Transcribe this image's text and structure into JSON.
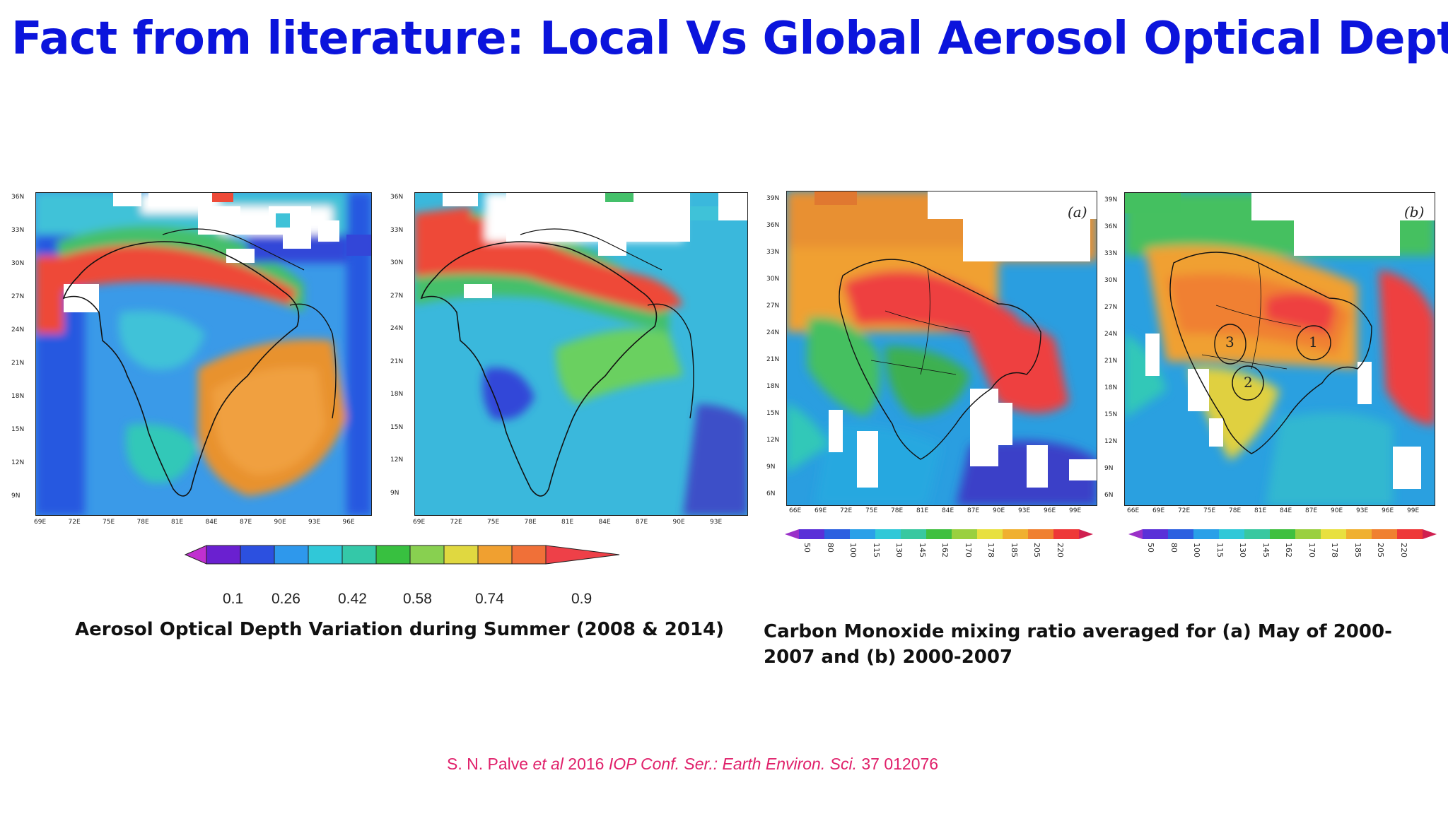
{
  "title": "Fact from literature: Local Vs Global Aerosol Optical Depth",
  "aod": {
    "lat_ticks_left": [
      "36N",
      "33N",
      "30N",
      "27N",
      "24N",
      "21N",
      "18N",
      "15N",
      "12N",
      "9N"
    ],
    "lon_ticks_left": [
      "69E",
      "72E",
      "75E",
      "78E",
      "81E",
      "84E",
      "87E",
      "90E",
      "93E",
      "96E"
    ],
    "lat_ticks_right": [
      "36N",
      "33N",
      "30N",
      "27N",
      "24N",
      "21N",
      "18N",
      "15N",
      "12N",
      "9N"
    ],
    "lon_ticks_right": [
      "69E",
      "72E",
      "75E",
      "78E",
      "81E",
      "84E",
      "87E",
      "90E",
      "93E"
    ],
    "colorbar_labels": [
      "0.1",
      "0.26",
      "0.42",
      "0.58",
      "0.74",
      "0.9"
    ],
    "caption": "Aerosol Optical Depth Variation during Summer (2008 & 2014)"
  },
  "co": {
    "panel_a": "(a)",
    "panel_b": "(b)",
    "lat_ticks": [
      "39N",
      "36N",
      "33N",
      "30N",
      "27N",
      "24N",
      "21N",
      "18N",
      "15N",
      "12N",
      "9N",
      "6N"
    ],
    "lon_ticks": [
      "66E",
      "69E",
      "72E",
      "75E",
      "78E",
      "81E",
      "84E",
      "87E",
      "90E",
      "93E",
      "96E",
      "99E"
    ],
    "colorbar_labels": [
      "50",
      "80",
      "100",
      "115",
      "130",
      "145",
      "162",
      "170",
      "178",
      "185",
      "205",
      "220"
    ],
    "region_labels": [
      "1",
      "2",
      "3"
    ],
    "caption": "Carbon Monoxide mixing ratio averaged for (a) May of 2000-2007 and (b) 2000-2007"
  },
  "citation": {
    "authors": "S. N. Palve ",
    "etal": "et al",
    "year": " 2016 ",
    "journal": "IOP Conf. Ser.: Earth Environ. Sci.",
    "volume": " 37 012076"
  },
  "colors": {
    "title": "#0b14dc",
    "citation": "#e0206a"
  }
}
